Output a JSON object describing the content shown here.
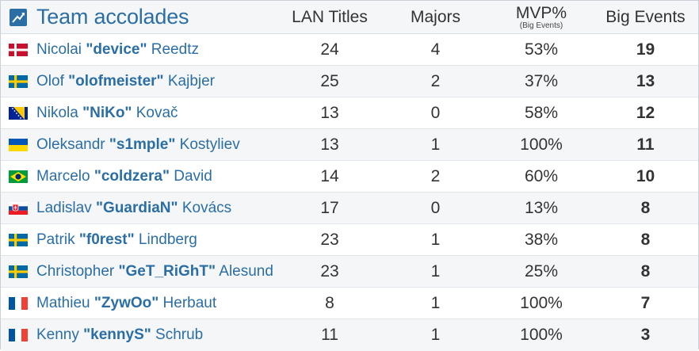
{
  "header": {
    "title": "Team accolades",
    "logo_icon": "trophy-chart-icon",
    "columns": {
      "lan_titles": "LAN Titles",
      "majors": "Majors",
      "mvp": "MVP%",
      "mvp_sub": "(Big Events)",
      "big_events": "Big Events"
    }
  },
  "players": [
    {
      "flag": "denmark",
      "first": "Nicolai",
      "nick": "\"device\"",
      "last": "Reedtz",
      "lan_titles": "24",
      "majors": "4",
      "mvp": "53%",
      "big_events": "19"
    },
    {
      "flag": "sweden",
      "first": "Olof",
      "nick": "\"olofmeister\"",
      "last": "Kajbjer",
      "lan_titles": "25",
      "majors": "2",
      "mvp": "37%",
      "big_events": "13"
    },
    {
      "flag": "bosnia",
      "first": "Nikola",
      "nick": "\"NiKo\"",
      "last": "Kovač",
      "lan_titles": "13",
      "majors": "0",
      "mvp": "58%",
      "big_events": "12"
    },
    {
      "flag": "ukraine",
      "first": "Oleksandr",
      "nick": "\"s1mple\"",
      "last": "Kostyliev",
      "lan_titles": "13",
      "majors": "1",
      "mvp": "100%",
      "big_events": "11"
    },
    {
      "flag": "brazil",
      "first": "Marcelo",
      "nick": "\"coldzera\"",
      "last": "David",
      "lan_titles": "14",
      "majors": "2",
      "mvp": "60%",
      "big_events": "10"
    },
    {
      "flag": "slovakia",
      "first": "Ladislav",
      "nick": "\"GuardiaN\"",
      "last": "Kovács",
      "lan_titles": "17",
      "majors": "0",
      "mvp": "13%",
      "big_events": "8"
    },
    {
      "flag": "sweden",
      "first": "Patrik",
      "nick": "\"f0rest\"",
      "last": "Lindberg",
      "lan_titles": "23",
      "majors": "1",
      "mvp": "38%",
      "big_events": "8"
    },
    {
      "flag": "sweden",
      "first": "Christopher",
      "nick": "\"GeT_RiGhT\"",
      "last": "Alesund",
      "lan_titles": "23",
      "majors": "1",
      "mvp": "25%",
      "big_events": "8"
    },
    {
      "flag": "france",
      "first": "Mathieu",
      "nick": "\"ZywOo\"",
      "last": "Herbaut",
      "lan_titles": "8",
      "majors": "1",
      "mvp": "100%",
      "big_events": "7"
    },
    {
      "flag": "france",
      "first": "Kenny",
      "nick": "\"kennyS\"",
      "last": "Schrub",
      "lan_titles": "11",
      "majors": "1",
      "mvp": "100%",
      "big_events": "3"
    }
  ]
}
